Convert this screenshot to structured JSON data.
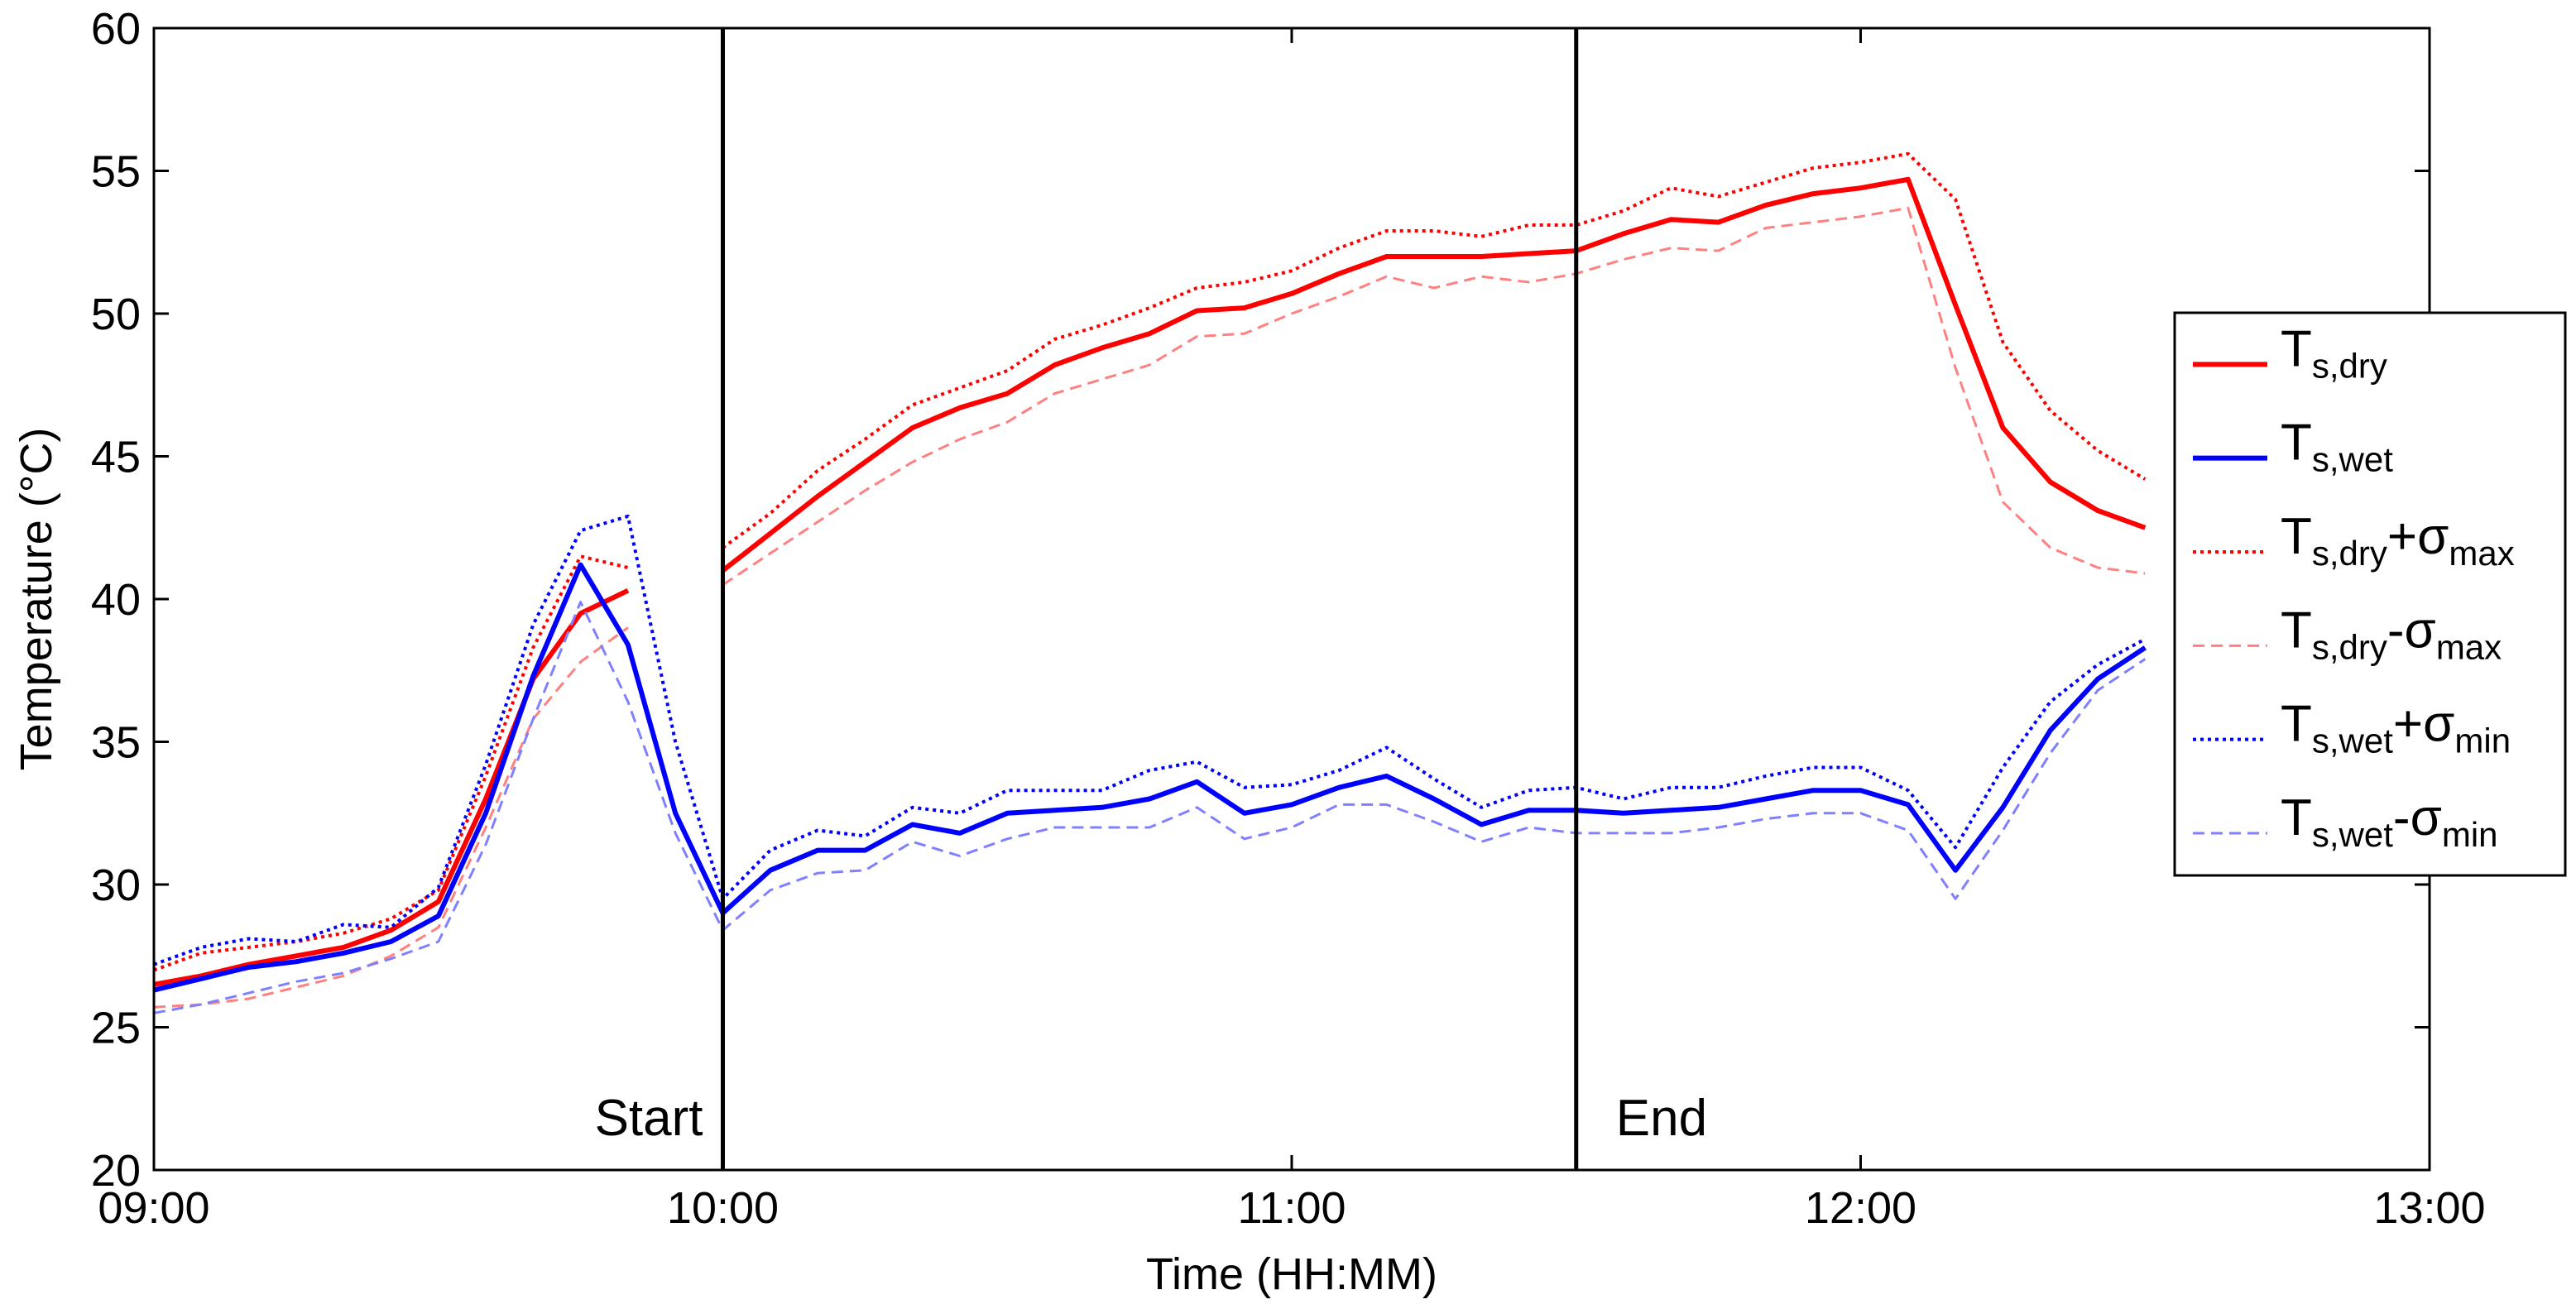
{
  "chart_data": {
    "type": "line",
    "xlabel": "Time (HH:MM)",
    "ylabel": "Temperature (°C)",
    "xlim": [
      "09:00",
      "13:00"
    ],
    "ylim": [
      20,
      60
    ],
    "x_ticks": [
      "09:00",
      "10:00",
      "11:00",
      "12:00",
      "13:00"
    ],
    "y_ticks": [
      20,
      25,
      30,
      35,
      40,
      45,
      50,
      55,
      60
    ],
    "grid": false,
    "legend_position": "right",
    "annotations": [
      {
        "text": "Start",
        "x": "10:00"
      },
      {
        "text": "End",
        "x": "11:30"
      }
    ],
    "vertical_lines": [
      "10:00",
      "11:30"
    ],
    "x": [
      "09:00",
      "09:05",
      "09:10",
      "09:15",
      "09:20",
      "09:25",
      "09:30",
      "09:35",
      "09:40",
      "09:45",
      "09:50",
      "09:55",
      "10:00",
      "10:05",
      "10:10",
      "10:15",
      "10:20",
      "10:25",
      "10:30",
      "10:35",
      "10:40",
      "10:45",
      "10:50",
      "10:55",
      "11:00",
      "11:05",
      "11:10",
      "11:15",
      "11:20",
      "11:25",
      "11:30",
      "11:35",
      "11:40",
      "11:45",
      "11:50",
      "11:55",
      "12:00",
      "12:05",
      "12:10",
      "12:15",
      "12:20",
      "12:25",
      "12:30",
      "12:35"
    ],
    "series": [
      {
        "name": "T_s,dry",
        "color": "#ff0000",
        "style": "solid",
        "values": [
          26.5,
          26.8,
          27.2,
          27.5,
          27.8,
          28.4,
          29.4,
          33.0,
          37.2,
          39.5,
          40.3,
          null,
          41.0,
          42.3,
          43.6,
          44.8,
          46.0,
          46.7,
          47.2,
          48.2,
          48.8,
          49.3,
          50.1,
          50.2,
          50.7,
          51.4,
          52.0,
          52.0,
          52.0,
          52.1,
          52.2,
          52.8,
          53.3,
          53.2,
          53.8,
          54.2,
          54.4,
          54.7,
          50.3,
          46.0,
          44.1,
          43.1,
          42.5,
          null
        ]
      },
      {
        "name": "T_s,wet",
        "color": "#0000ff",
        "style": "solid",
        "values": [
          26.3,
          26.7,
          27.1,
          27.3,
          27.6,
          28.0,
          28.9,
          32.5,
          37.3,
          41.2,
          38.4,
          32.5,
          29.0,
          30.5,
          31.2,
          31.2,
          32.1,
          31.8,
          32.5,
          32.6,
          32.7,
          33.0,
          33.6,
          32.5,
          32.8,
          33.4,
          33.8,
          33.0,
          32.1,
          32.6,
          32.6,
          32.5,
          32.6,
          32.7,
          33.0,
          33.3,
          33.3,
          32.8,
          30.5,
          32.7,
          35.4,
          37.2,
          38.3,
          null
        ]
      },
      {
        "name": "T_s,dry+σ_max",
        "color": "#ff0000",
        "style": "dotted",
        "values": [
          27.0,
          27.6,
          27.8,
          28.0,
          28.3,
          28.8,
          29.8,
          33.8,
          38.3,
          41.5,
          41.1,
          null,
          41.8,
          43.0,
          44.5,
          45.6,
          46.8,
          47.4,
          48.0,
          49.1,
          49.6,
          50.2,
          50.9,
          51.1,
          51.5,
          52.3,
          52.9,
          52.9,
          52.7,
          53.1,
          53.1,
          53.6,
          54.4,
          54.1,
          54.6,
          55.1,
          55.3,
          55.6,
          54.0,
          49.0,
          46.6,
          45.2,
          44.2,
          null
        ]
      },
      {
        "name": "T_s,dry-σ_max",
        "color": "#ff8080",
        "style": "dashed",
        "values": [
          25.7,
          25.8,
          26.0,
          26.4,
          26.8,
          27.5,
          28.5,
          32.0,
          35.8,
          37.8,
          39.0,
          null,
          40.5,
          41.6,
          42.7,
          43.8,
          44.8,
          45.6,
          46.2,
          47.2,
          47.7,
          48.2,
          49.2,
          49.3,
          50.0,
          50.6,
          51.3,
          50.9,
          51.3,
          51.1,
          51.4,
          51.9,
          52.3,
          52.2,
          53.0,
          53.2,
          53.4,
          53.7,
          48.1,
          43.4,
          41.8,
          41.1,
          40.9,
          null
        ]
      },
      {
        "name": "T_s,wet+σ_min",
        "color": "#0000ff",
        "style": "dotted",
        "values": [
          27.2,
          27.8,
          28.1,
          28.0,
          28.6,
          28.5,
          29.9,
          34.2,
          39.1,
          42.4,
          42.9,
          35.0,
          29.5,
          31.2,
          31.9,
          31.7,
          32.7,
          32.5,
          33.3,
          33.3,
          33.3,
          34.0,
          34.3,
          33.4,
          33.5,
          34.0,
          34.8,
          33.7,
          32.7,
          33.3,
          33.4,
          33.0,
          33.4,
          33.4,
          33.8,
          34.1,
          34.1,
          33.3,
          31.3,
          34.1,
          36.4,
          37.7,
          38.6,
          null
        ]
      },
      {
        "name": "T_s,wet-σ_min",
        "color": "#8080ff",
        "style": "dashed",
        "values": [
          25.5,
          25.8,
          26.2,
          26.6,
          26.9,
          27.4,
          28.0,
          31.4,
          35.8,
          39.9,
          36.4,
          31.8,
          28.4,
          29.8,
          30.4,
          30.5,
          31.5,
          31.0,
          31.6,
          32.0,
          32.0,
          32.0,
          32.7,
          31.6,
          32.0,
          32.8,
          32.8,
          32.2,
          31.5,
          32.0,
          31.8,
          31.8,
          31.8,
          32.0,
          32.3,
          32.5,
          32.5,
          31.9,
          29.5,
          31.9,
          34.6,
          36.8,
          37.9,
          null
        ]
      }
    ]
  },
  "legend": {
    "entries": [
      {
        "main": "T",
        "sub": "s,dry",
        "op": "",
        "sigma": "",
        "sigsub": ""
      },
      {
        "main": "T",
        "sub": "s,wet",
        "op": "",
        "sigma": "",
        "sigsub": ""
      },
      {
        "main": "T",
        "sub": "s,dry",
        "op": "+",
        "sigma": "σ",
        "sigsub": "max"
      },
      {
        "main": "T",
        "sub": "s,dry",
        "op": "-",
        "sigma": "σ",
        "sigsub": "max"
      },
      {
        "main": "T",
        "sub": "s,wet",
        "op": "+",
        "sigma": "σ",
        "sigsub": "min"
      },
      {
        "main": "T",
        "sub": "s,wet",
        "op": "-",
        "sigma": "σ",
        "sigsub": "min"
      }
    ]
  }
}
